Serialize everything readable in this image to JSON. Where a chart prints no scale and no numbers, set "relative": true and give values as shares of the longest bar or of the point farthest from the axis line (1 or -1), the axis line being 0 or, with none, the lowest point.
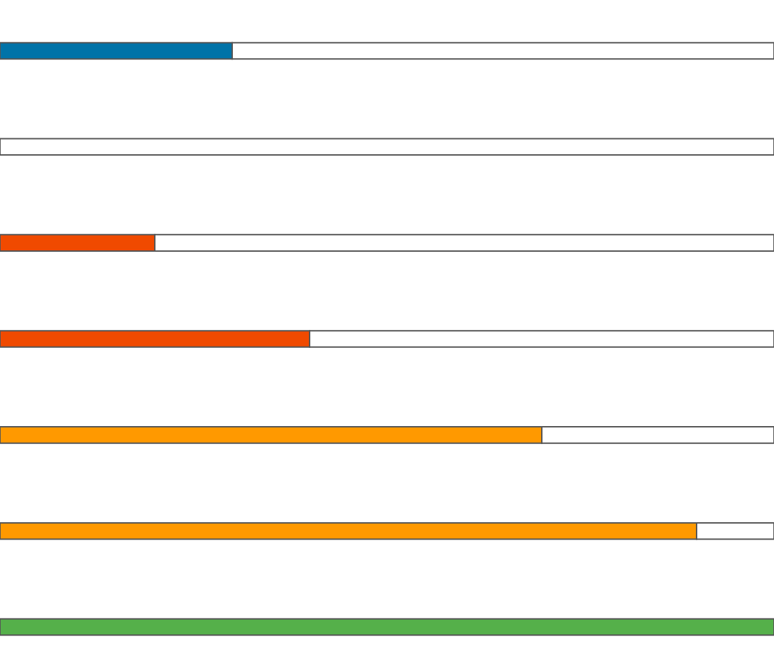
{
  "chart_data": {
    "type": "bar",
    "orientation": "horizontal",
    "stacked": true,
    "relative": true,
    "categories": [
      null,
      null,
      null,
      null,
      null,
      null,
      null
    ],
    "series": [
      {
        "colors": [
          "#0073a8",
          "#0073a8",
          "#f04a00",
          "#f04a00",
          "#ff9900",
          "#ff9900",
          "#55b04a"
        ],
        "values": [
          0.3,
          0,
          0.2,
          0.4,
          0.7,
          0.9,
          1
        ]
      },
      {
        "color": "#ffffff",
        "values": [
          0.7,
          1,
          0.8,
          0.6,
          0.3,
          0.1,
          null
        ]
      }
    ]
  }
}
